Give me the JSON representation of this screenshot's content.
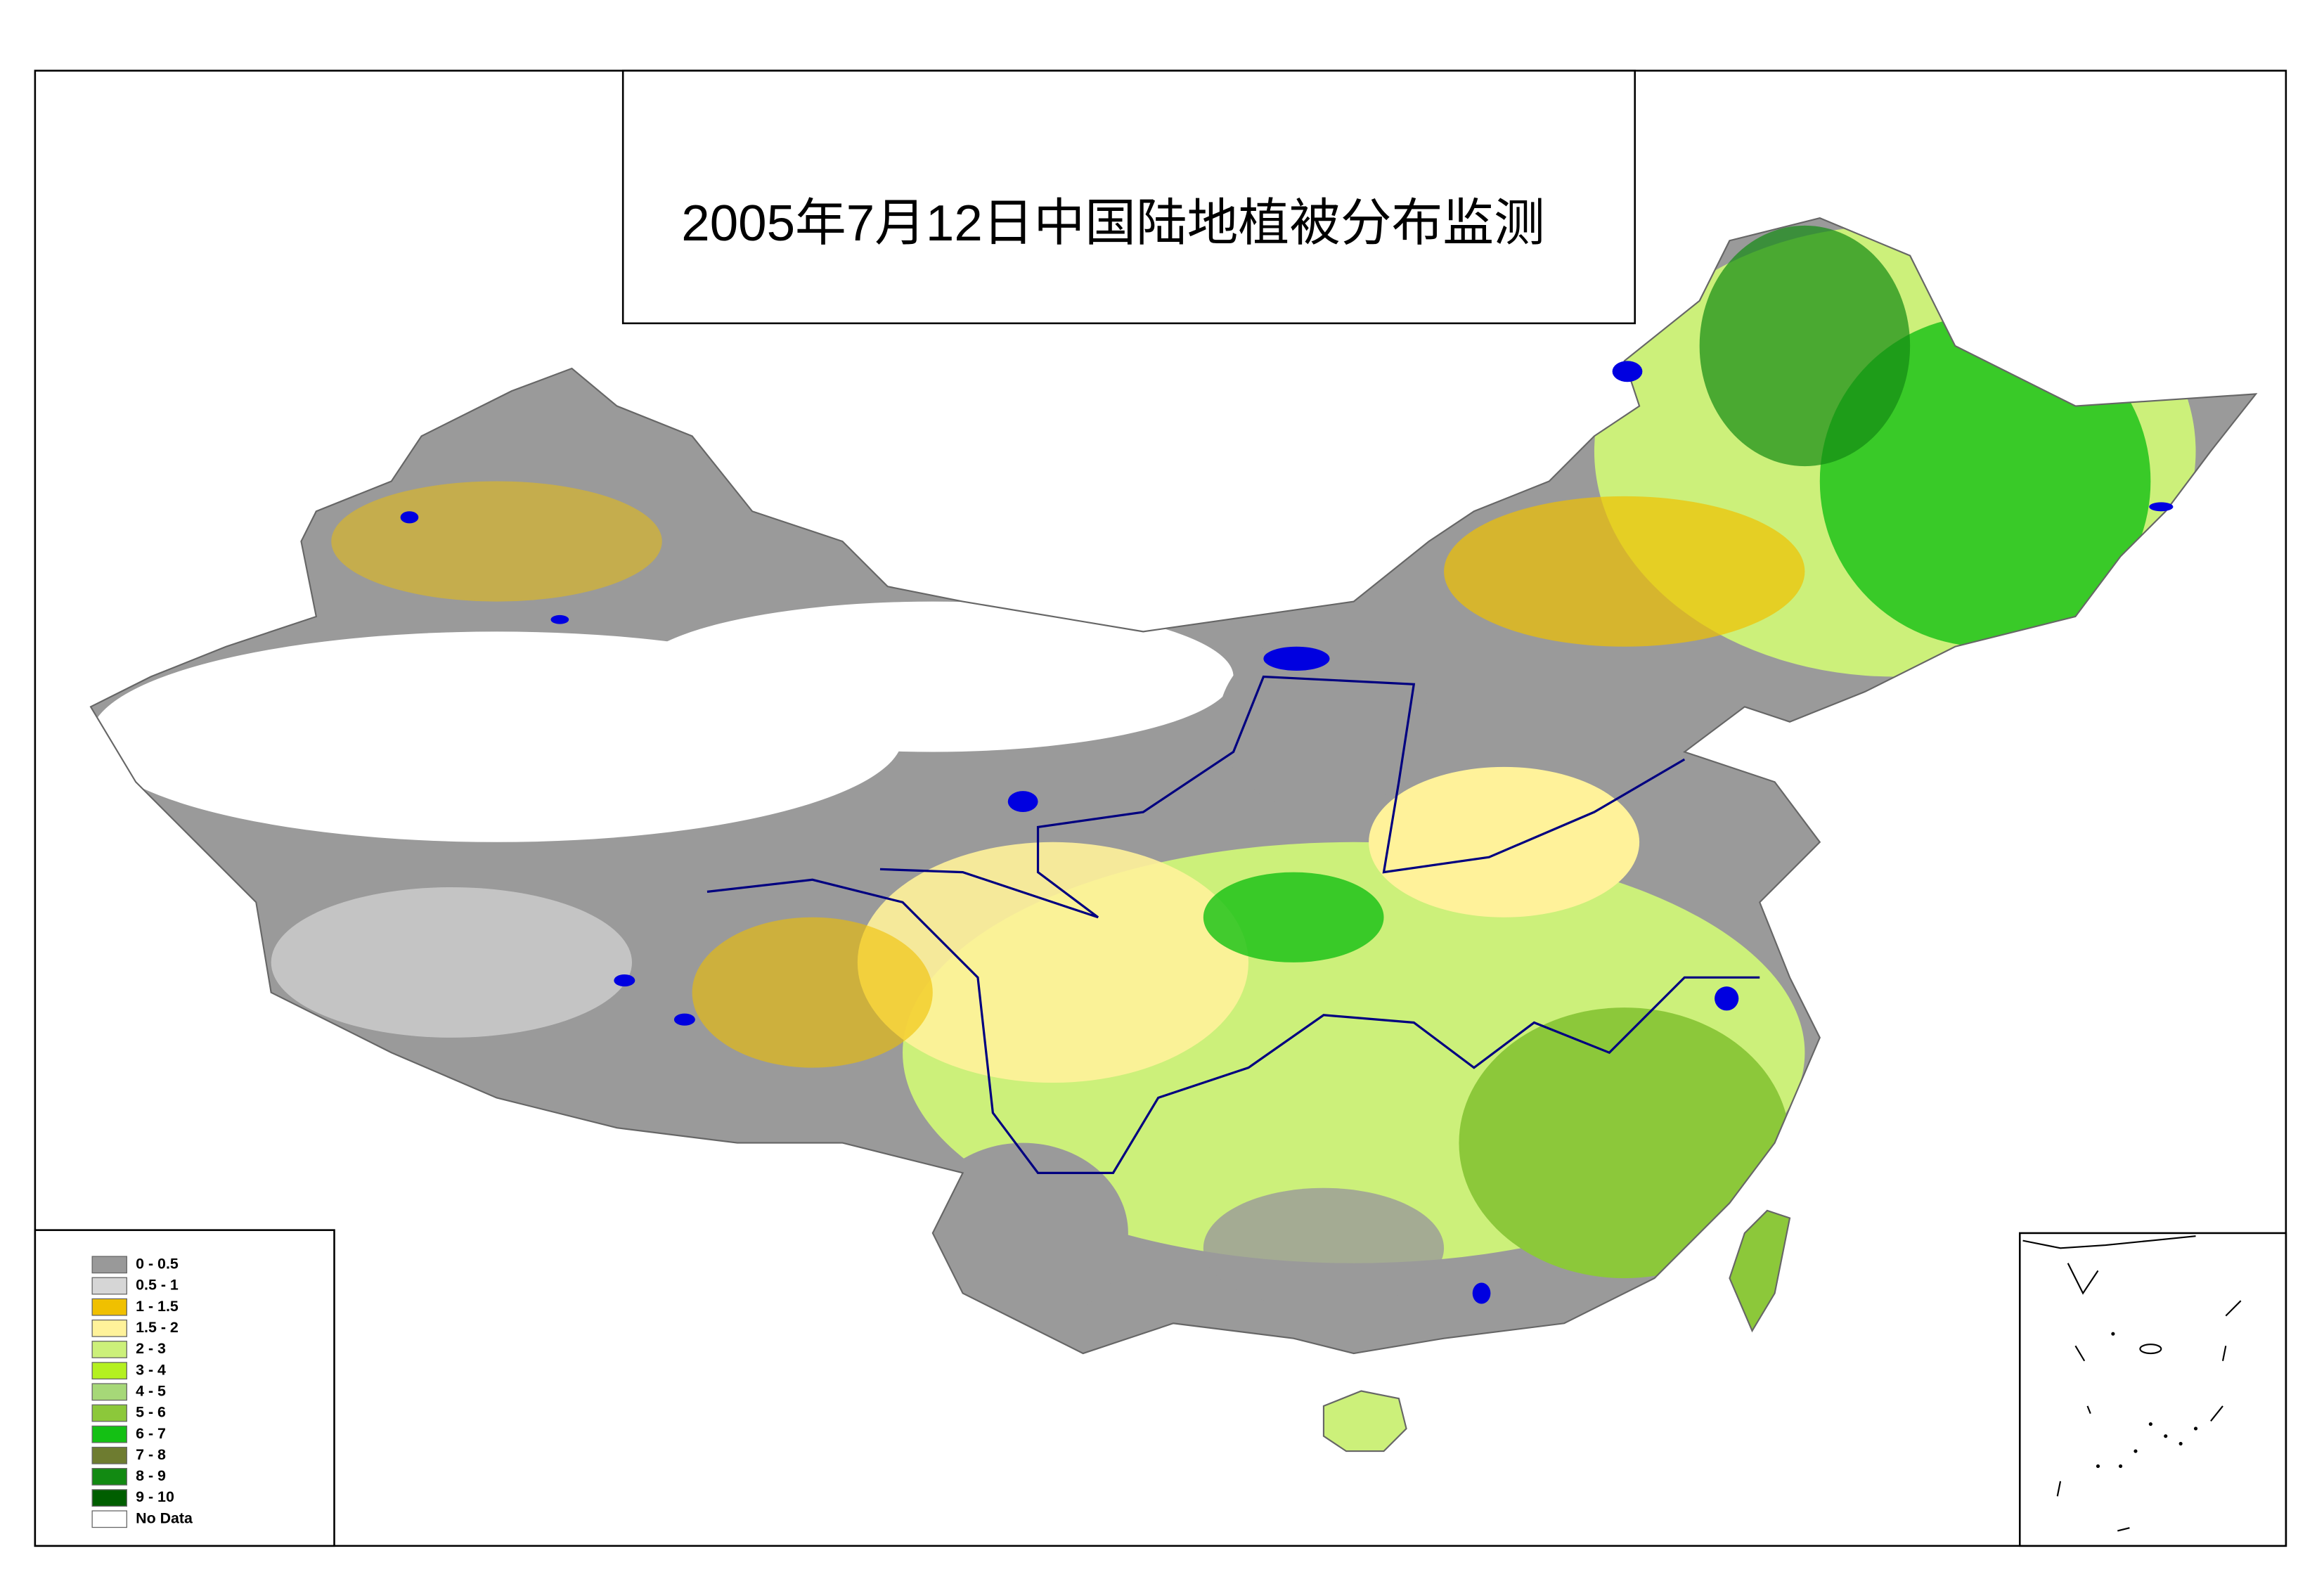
{
  "title": "2005年7月12日中国陆地植被分布监测",
  "legend": [
    {
      "label": "0 - 0.5",
      "color": "#999999"
    },
    {
      "label": "0.5 - 1",
      "color": "#d6d6d6"
    },
    {
      "label": "1 - 1.5",
      "color": "#f0c000"
    },
    {
      "label": "1.5 - 2",
      "color": "#fff29a"
    },
    {
      "label": "2 - 3",
      "color": "#ccf07a"
    },
    {
      "label": "3 - 4",
      "color": "#b4f020"
    },
    {
      "label": "4 - 5",
      "color": "#a6d878"
    },
    {
      "label": "5 - 6",
      "color": "#8cc83a"
    },
    {
      "label": "6 - 7",
      "color": "#14c014"
    },
    {
      "label": "7 - 8",
      "color": "#6e7c30"
    },
    {
      "label": "8 - 9",
      "color": "#128a12"
    },
    {
      "label": "9 - 10",
      "color": "#005e00"
    },
    {
      "label": "No Data",
      "color": "#ffffff"
    }
  ]
}
